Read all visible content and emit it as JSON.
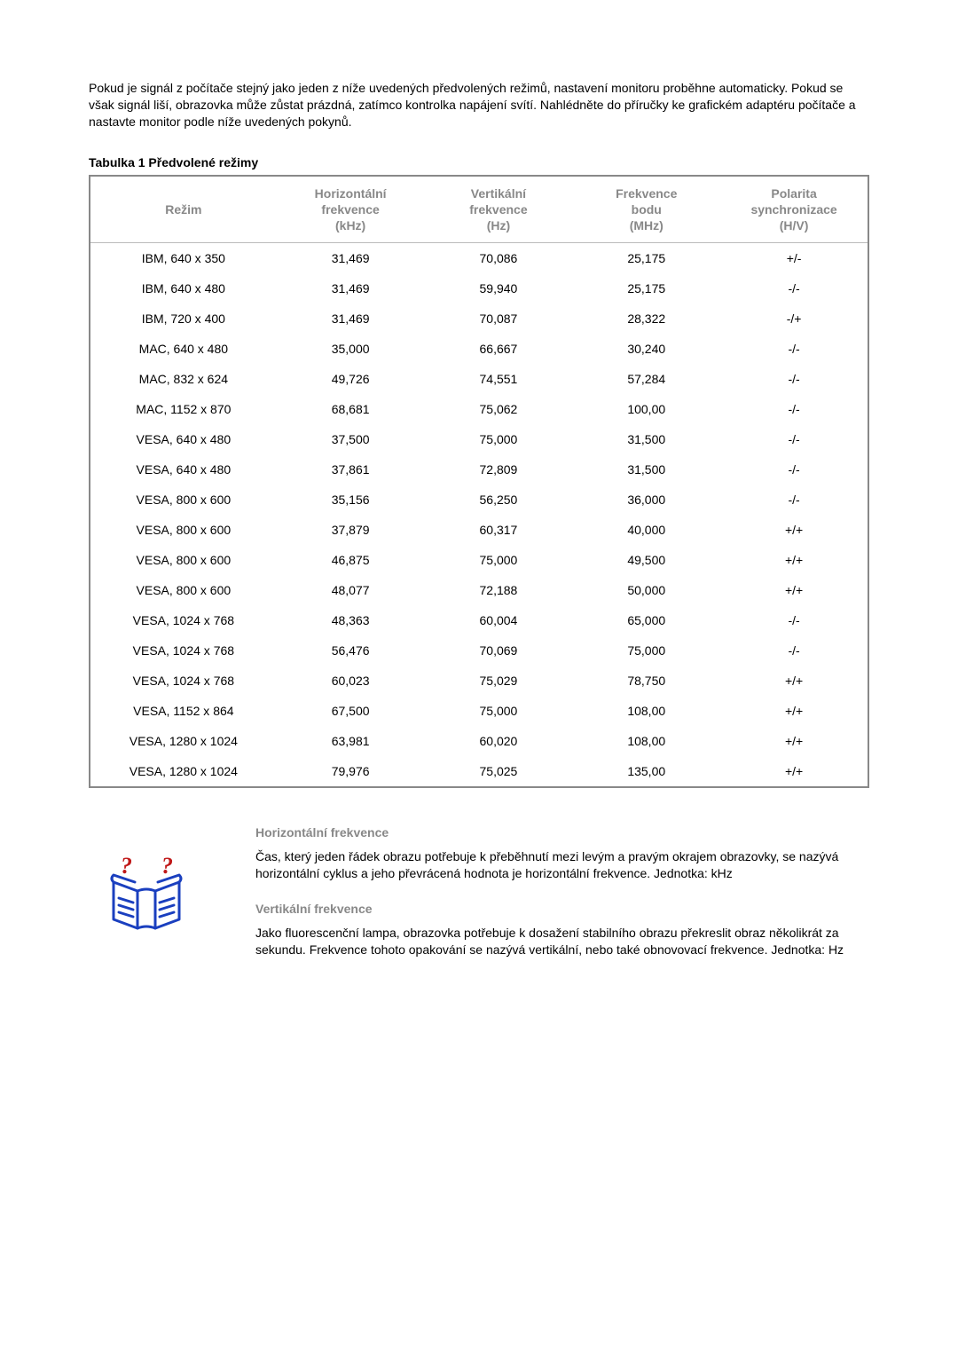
{
  "intro": "Pokud je signál z počítače stejný jako jeden z níže uvedených předvolených režimů, nastavení monitoru proběhne automaticky. Pokud se však signál liší, obrazovka může zůstat prázdná, zatímco kontrolka napájení svítí. Nahlédněte do příručky ke grafickém adaptéru počítače a nastavte monitor podle níže uvedených pokynů.",
  "table_title": "Tabulka 1 Předvolené režimy",
  "table": {
    "columns": [
      "Režim",
      "Horizontální\nfrekvence\n(kHz)",
      "Vertikální\nfrekvence\n(Hz)",
      "Frekvence\nbodu\n(MHz)",
      "Polarita\nsynchronizace\n(H/V)"
    ],
    "rows": [
      [
        "IBM, 640 x 350",
        "31,469",
        "70,086",
        "25,175",
        "+/-"
      ],
      [
        "IBM, 640 x 480",
        "31,469",
        "59,940",
        "25,175",
        "-/-"
      ],
      [
        "IBM, 720 x 400",
        "31,469",
        "70,087",
        "28,322",
        "-/+"
      ],
      [
        "MAC, 640 x 480",
        "35,000",
        "66,667",
        "30,240",
        "-/-"
      ],
      [
        "MAC, 832 x 624",
        "49,726",
        "74,551",
        "57,284",
        "-/-"
      ],
      [
        "MAC, 1152 x 870",
        "68,681",
        "75,062",
        "100,00",
        "-/-"
      ],
      [
        "VESA, 640 x 480",
        "37,500",
        "75,000",
        "31,500",
        "-/-"
      ],
      [
        "VESA, 640 x 480",
        "37,861",
        "72,809",
        "31,500",
        "-/-"
      ],
      [
        "VESA, 800 x 600",
        "35,156",
        "56,250",
        "36,000",
        "-/-"
      ],
      [
        "VESA, 800 x 600",
        "37,879",
        "60,317",
        "40,000",
        "+/+"
      ],
      [
        "VESA, 800 x 600",
        "46,875",
        "75,000",
        "49,500",
        "+/+"
      ],
      [
        "VESA, 800 x 600",
        "48,077",
        "72,188",
        "50,000",
        "+/+"
      ],
      [
        "VESA, 1024 x 768",
        "48,363",
        "60,004",
        "65,000",
        "-/-"
      ],
      [
        "VESA, 1024 x 768",
        "56,476",
        "70,069",
        "75,000",
        "-/-"
      ],
      [
        "VESA, 1024 x 768",
        "60,023",
        "75,029",
        "78,750",
        "+/+"
      ],
      [
        "VESA, 1152 x 864",
        "67,500",
        "75,000",
        "108,00",
        "+/+"
      ],
      [
        "VESA, 1280 x 1024",
        "63,981",
        "60,020",
        "108,00",
        "+/+"
      ],
      [
        "VESA, 1280 x 1024",
        "79,976",
        "75,025",
        "135,00",
        "+/+"
      ]
    ],
    "col_widths": [
      "24%",
      "19%",
      "19%",
      "19%",
      "19%"
    ]
  },
  "defs": {
    "h_heading": "Horizontální frekvence",
    "h_body": "Čas, který jeden řádek obrazu potřebuje k přeběhnutí mezi levým a pravým okrajem obrazovky, se nazývá horizontální cyklus a jeho převrácená hodnota je horizontální frekvence. Jednotka: kHz",
    "v_heading": "Vertikální frekvence",
    "v_body": "Jako fluorescenční lampa, obrazovka potřebuje k dosažení stabilního obrazu překreslit obraz několikrát za sekundu. Frekvence tohoto opakování se nazývá vertikální, nebo také obnovovací frekvence. Jednotka: Hz"
  },
  "colors": {
    "header_text": "#888888",
    "border": "#888888",
    "icon_blue": "#1a3fbf",
    "icon_red": "#c01818"
  }
}
